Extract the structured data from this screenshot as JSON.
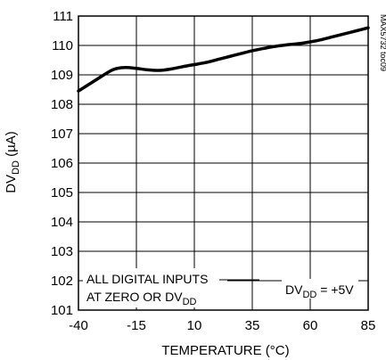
{
  "chart_data": {
    "type": "line",
    "title": "",
    "xlabel": "TEMPERATURE (°C)",
    "ylabel_main": "DV",
    "ylabel_sub": "DD",
    "ylabel_unit": " (µA)",
    "xlim": [
      -40,
      85
    ],
    "ylim": [
      101,
      111
    ],
    "xticks": [
      -40,
      -15,
      10,
      35,
      60,
      85
    ],
    "yticks": [
      101,
      102,
      103,
      104,
      105,
      106,
      107,
      108,
      109,
      110,
      111
    ],
    "grid": true,
    "series": [
      {
        "x": [
          -40,
          -35,
          -30,
          -25,
          -20,
          -15,
          -10,
          -5,
          0,
          5,
          10,
          15,
          20,
          25,
          30,
          35,
          40,
          45,
          50,
          55,
          60,
          65,
          70,
          75,
          80,
          85
        ],
        "y": [
          108.45,
          108.7,
          108.95,
          109.18,
          109.25,
          109.22,
          109.17,
          109.15,
          109.2,
          109.28,
          109.35,
          109.42,
          109.52,
          109.62,
          109.72,
          109.82,
          109.9,
          109.97,
          110.02,
          110.06,
          110.12,
          110.2,
          110.3,
          110.4,
          110.5,
          110.6
        ],
        "color": "#000000"
      }
    ],
    "annotations": {
      "note_line1": "ALL DIGITAL INPUTS",
      "note_line2_prefix": "AT ZERO OR DV",
      "note_line2_sub": "DD",
      "cond_prefix": "DV",
      "cond_sub": "DD",
      "cond_suffix": " = +5V",
      "side_label": "MAX5732 toc09"
    }
  }
}
